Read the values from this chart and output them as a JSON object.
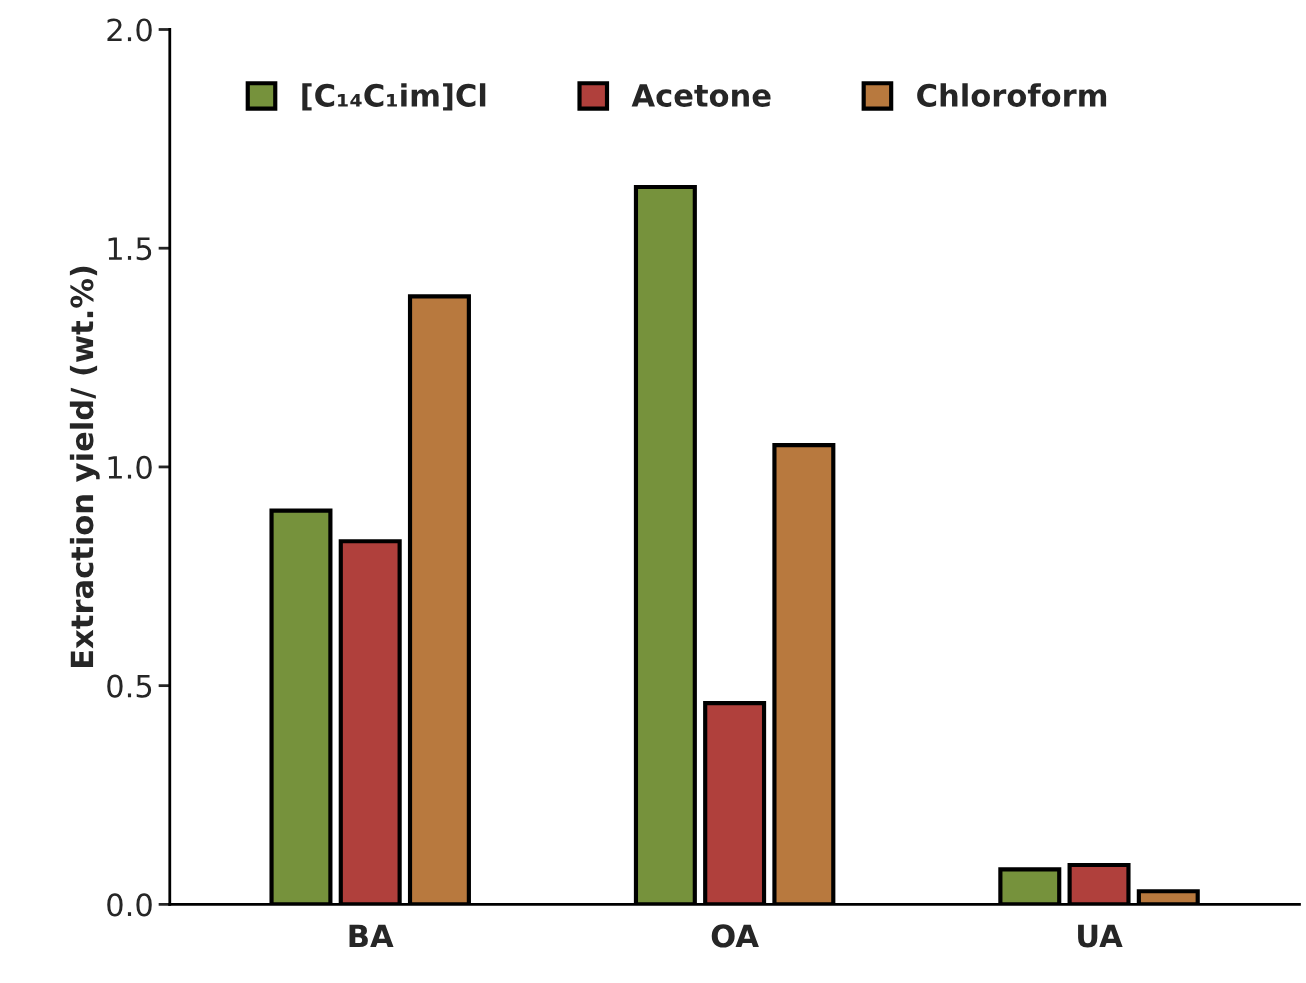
{
  "chart_data": {
    "type": "bar",
    "ylabel": "Extraction yield/ (wt.%)",
    "categories": [
      "BA",
      "OA",
      "UA"
    ],
    "series": [
      {
        "name": "[C₁₄C₁im]Cl",
        "color": "#76923c",
        "values": [
          0.9,
          1.64,
          0.08
        ]
      },
      {
        "name": "Acetone",
        "color": "#b0403c",
        "values": [
          0.83,
          0.46,
          0.09
        ]
      },
      {
        "name": "Chloroform",
        "color": "#b8793e",
        "values": [
          1.39,
          1.05,
          0.03
        ]
      }
    ],
    "ylim": [
      0,
      2.0
    ],
    "yticks": [
      {
        "value": 0,
        "label": "0.0"
      },
      0.5,
      {
        "value": 1,
        "label": "1.0"
      },
      1.5,
      {
        "value": 2,
        "label": "2.0"
      }
    ],
    "grid": false,
    "legend": "top"
  }
}
